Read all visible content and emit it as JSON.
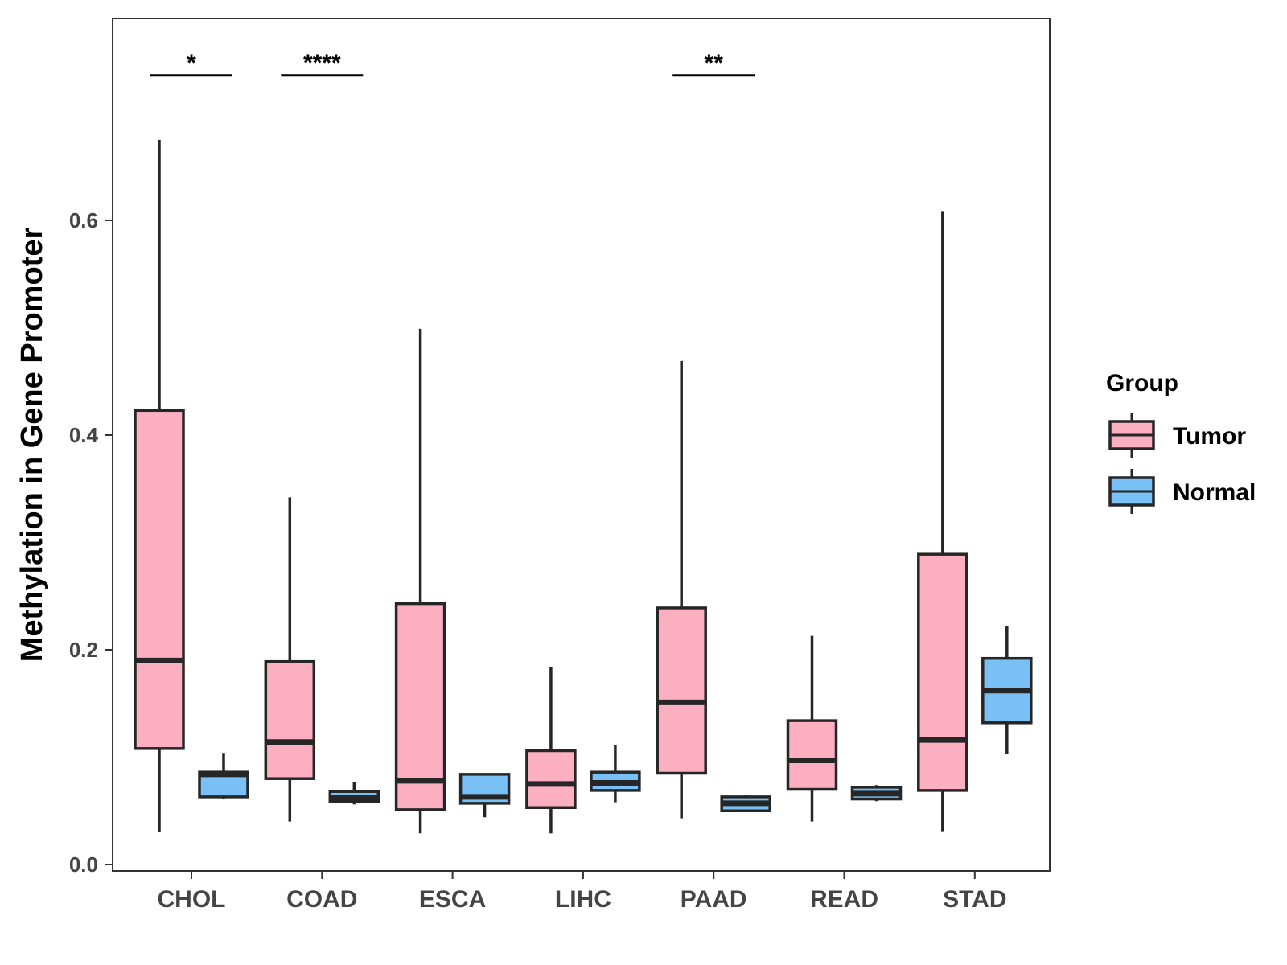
{
  "chart_data": {
    "type": "boxplot",
    "title": "",
    "xlabel": "",
    "ylabel": "Methylation in Gene Promoter",
    "ylim": [
      -0.01,
      0.79
    ],
    "yticks": [
      0.0,
      0.2,
      0.4,
      0.6
    ],
    "ytick_labels": [
      "0.0",
      "0.2",
      "0.4",
      "0.6"
    ],
    "categories": [
      "CHOL",
      "COAD",
      "ESCA",
      "LIHC",
      "PAAD",
      "READ",
      "STAD"
    ],
    "grid": false,
    "legend": {
      "title": "Group",
      "placement": "right",
      "entries": [
        "Tumor",
        "Normal"
      ]
    },
    "colors": {
      "Tumor": "#FBAFC1",
      "Normal": "#79C0F7",
      "stroke": "#262626"
    },
    "series": [
      {
        "name": "Tumor",
        "boxes": [
          {
            "min": 0.03,
            "q1": 0.108,
            "median": 0.19,
            "q3": 0.423,
            "max": 0.675
          },
          {
            "min": 0.04,
            "q1": 0.08,
            "median": 0.114,
            "q3": 0.189,
            "max": 0.342
          },
          {
            "min": 0.029,
            "q1": 0.051,
            "median": 0.078,
            "q3": 0.243,
            "max": 0.499
          },
          {
            "min": 0.029,
            "q1": 0.053,
            "median": 0.075,
            "q3": 0.106,
            "max": 0.184
          },
          {
            "min": 0.043,
            "q1": 0.085,
            "median": 0.151,
            "q3": 0.239,
            "max": 0.469
          },
          {
            "min": 0.04,
            "q1": 0.07,
            "median": 0.097,
            "q3": 0.134,
            "max": 0.213
          },
          {
            "min": 0.031,
            "q1": 0.069,
            "median": 0.116,
            "q3": 0.289,
            "max": 0.608
          }
        ]
      },
      {
        "name": "Normal",
        "boxes": [
          {
            "min": 0.061,
            "q1": 0.063,
            "median": 0.084,
            "q3": 0.086,
            "max": 0.104
          },
          {
            "min": 0.056,
            "q1": 0.059,
            "median": 0.062,
            "q3": 0.068,
            "max": 0.077
          },
          {
            "min": 0.044,
            "q1": 0.057,
            "median": 0.063,
            "q3": 0.084,
            "max": 0.085
          },
          {
            "min": 0.058,
            "q1": 0.069,
            "median": 0.076,
            "q3": 0.086,
            "max": 0.111
          },
          {
            "min": 0.05,
            "q1": 0.05,
            "median": 0.057,
            "q3": 0.063,
            "max": 0.065
          },
          {
            "min": 0.059,
            "q1": 0.061,
            "median": 0.066,
            "q3": 0.072,
            "max": 0.074
          },
          {
            "min": 0.103,
            "q1": 0.132,
            "median": 0.162,
            "q3": 0.192,
            "max": 0.222
          }
        ]
      }
    ],
    "significance": [
      {
        "category": "CHOL",
        "label": "*",
        "y": 0.735
      },
      {
        "category": "COAD",
        "label": "****",
        "y": 0.735
      },
      {
        "category": "PAAD",
        "label": "**",
        "y": 0.735
      }
    ]
  }
}
